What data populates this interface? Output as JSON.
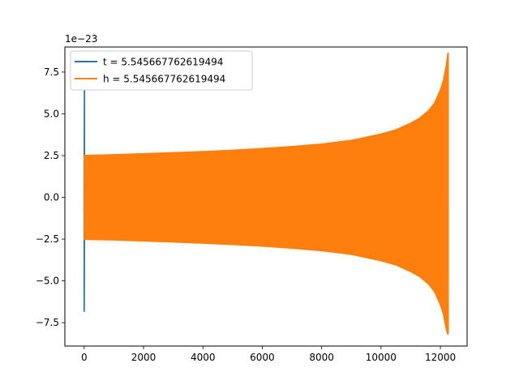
{
  "chart_data": {
    "type": "line",
    "title": "",
    "xlabel": "",
    "ylabel": "",
    "offset_text": "1e−23",
    "xlim": [
      -650,
      12900
    ],
    "ylim": [
      -8.9,
      9.0
    ],
    "grid": false,
    "legend_position": "top-left",
    "x_ticks": [
      0,
      2000,
      4000,
      6000,
      8000,
      10000,
      12000
    ],
    "x_tick_labels": [
      "0",
      "2000",
      "4000",
      "6000",
      "8000",
      "10000",
      "12000"
    ],
    "y_ticks": [
      -7.5,
      -5.0,
      -2.5,
      0.0,
      2.5,
      5.0,
      7.5
    ],
    "y_tick_labels": [
      "−7.5",
      "−5.0",
      "−2.5",
      "0.0",
      "2.5",
      "5.0",
      "7.5"
    ],
    "series": [
      {
        "name": "t = 5.545667762619494",
        "color": "#1f77b4",
        "x": [
          0,
          0,
          0,
          0
        ],
        "y": [
          -1.0,
          6.4,
          -6.85,
          0.0
        ]
      },
      {
        "name": "h = 5.545667762619494",
        "color": "#ff7f0e",
        "envelope_x": [
          0,
          1000,
          2000,
          3000,
          4000,
          5000,
          6000,
          7000,
          8000,
          9000,
          10000,
          10500,
          11000,
          11300,
          11600,
          11800,
          12000,
          12100,
          12200,
          12250,
          12270
        ],
        "envelope_upper": [
          2.52,
          2.56,
          2.62,
          2.68,
          2.75,
          2.83,
          2.93,
          3.05,
          3.2,
          3.42,
          3.8,
          4.05,
          4.45,
          4.75,
          5.2,
          5.65,
          6.45,
          7.0,
          7.95,
          8.65,
          8.6
        ],
        "envelope_lower": [
          -2.52,
          -2.56,
          -2.62,
          -2.68,
          -2.75,
          -2.83,
          -2.93,
          -3.05,
          -3.2,
          -3.42,
          -3.8,
          -4.05,
          -4.45,
          -4.75,
          -5.2,
          -5.65,
          -6.45,
          -7.0,
          -7.95,
          -8.2,
          -8.1
        ]
      }
    ]
  }
}
